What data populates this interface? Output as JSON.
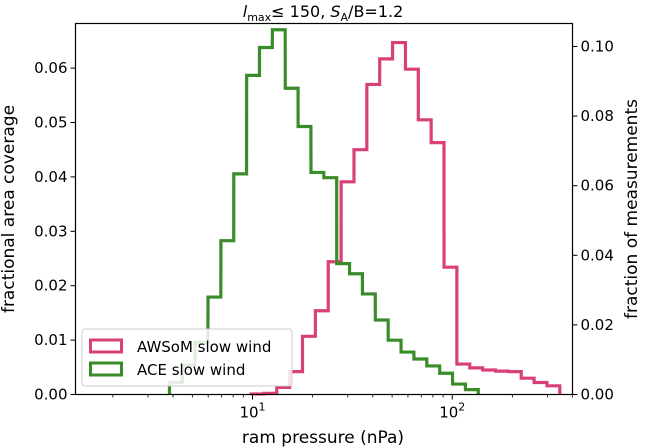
{
  "chart_data": {
    "type": "step-histogram",
    "title": {
      "l_symbol": "l",
      "l_sub": "max",
      "le": "≤ 150, ",
      "s_symbol": "S",
      "s_sub": "A",
      "ratio": "/B=1.2"
    },
    "xlabel": "ram pressure (nPa)",
    "ylabel_left": "fractional area coverage",
    "ylabel_right": "fraction of measurements",
    "xscale": "log",
    "xlim": [
      1.3,
      400
    ],
    "ylim_left": [
      0,
      0.0682
    ],
    "ylim_right": [
      0,
      0.1066
    ],
    "xticks": [
      {
        "value": 10,
        "base": "10",
        "exp": "1"
      },
      {
        "value": 100,
        "base": "10",
        "exp": "2"
      }
    ],
    "yticks_left": [
      {
        "value": 0.0,
        "label": "0.00"
      },
      {
        "value": 0.01,
        "label": "0.01"
      },
      {
        "value": 0.02,
        "label": "0.02"
      },
      {
        "value": 0.03,
        "label": "0.03"
      },
      {
        "value": 0.04,
        "label": "0.04"
      },
      {
        "value": 0.05,
        "label": "0.05"
      },
      {
        "value": 0.06,
        "label": "0.06"
      }
    ],
    "yticks_right": [
      {
        "value": 0.0,
        "label": "0.00"
      },
      {
        "value": 0.02,
        "label": "0.02"
      },
      {
        "value": 0.04,
        "label": "0.04"
      },
      {
        "value": 0.06,
        "label": "0.06"
      },
      {
        "value": 0.08,
        "label": "0.08"
      },
      {
        "value": 0.1,
        "label": "0.10"
      }
    ],
    "legend": {
      "position": "lower-left",
      "entries": [
        {
          "label": "AWSoM slow wind",
          "color": "#d9407a"
        },
        {
          "label": "ACE slow wind",
          "color": "#3a8c2a"
        }
      ]
    },
    "series": [
      {
        "name": "AWSoM slow wind",
        "axis": "left",
        "color": "#d9407a",
        "edges": [
          9.84,
          11.41,
          13.23,
          15.35,
          17.8,
          20.65,
          23.95,
          27.78,
          32.22,
          37.37,
          43.34,
          50.27,
          58.31,
          67.63,
          78.44,
          90.98,
          105.5,
          122.4,
          142,
          164.7,
          191,
          221.5,
          257,
          298
        ],
        "values": [
          0.0001,
          0.0002,
          0.0013,
          0.0042,
          0.0107,
          0.0154,
          0.0244,
          0.0391,
          0.045,
          0.057,
          0.0617,
          0.0647,
          0.0598,
          0.0505,
          0.0463,
          0.0234,
          0.0056,
          0.0049,
          0.0045,
          0.0043,
          0.0042,
          0.003,
          0.0022,
          0.0016
        ],
        "tail_edges": [
          9.84,
          11.41,
          13.23,
          15.35,
          17.8,
          20.65,
          23.95,
          27.78,
          32.22,
          37.37,
          43.34,
          50.27,
          58.31,
          67.63,
          78.44,
          90.98,
          105.5,
          122.4,
          142,
          164.7,
          191,
          221.5,
          257,
          298
        ]
      },
      {
        "name": "ACE slow wind",
        "axis": "right",
        "color": "#3a8c2a",
        "edges": [
          3.84,
          4.45,
          5.16,
          5.99,
          6.95,
          8.06,
          9.35,
          10.84,
          12.58,
          14.59,
          16.92,
          19.63,
          22.77,
          26.41,
          30.63,
          35.53,
          41.22,
          47.81,
          55.46,
          64.33,
          74.62,
          86.56,
          100.4,
          116.5
        ],
        "values": [
          0.0035,
          0.0085,
          0.015,
          0.028,
          0.0442,
          0.0634,
          0.0917,
          0.0997,
          0.1048,
          0.088,
          0.077,
          0.0638,
          0.0623,
          0.0376,
          0.0347,
          0.0289,
          0.0214,
          0.0156,
          0.0122,
          0.0102,
          0.0082,
          0.0061,
          0.003,
          0.0014
        ]
      }
    ]
  }
}
